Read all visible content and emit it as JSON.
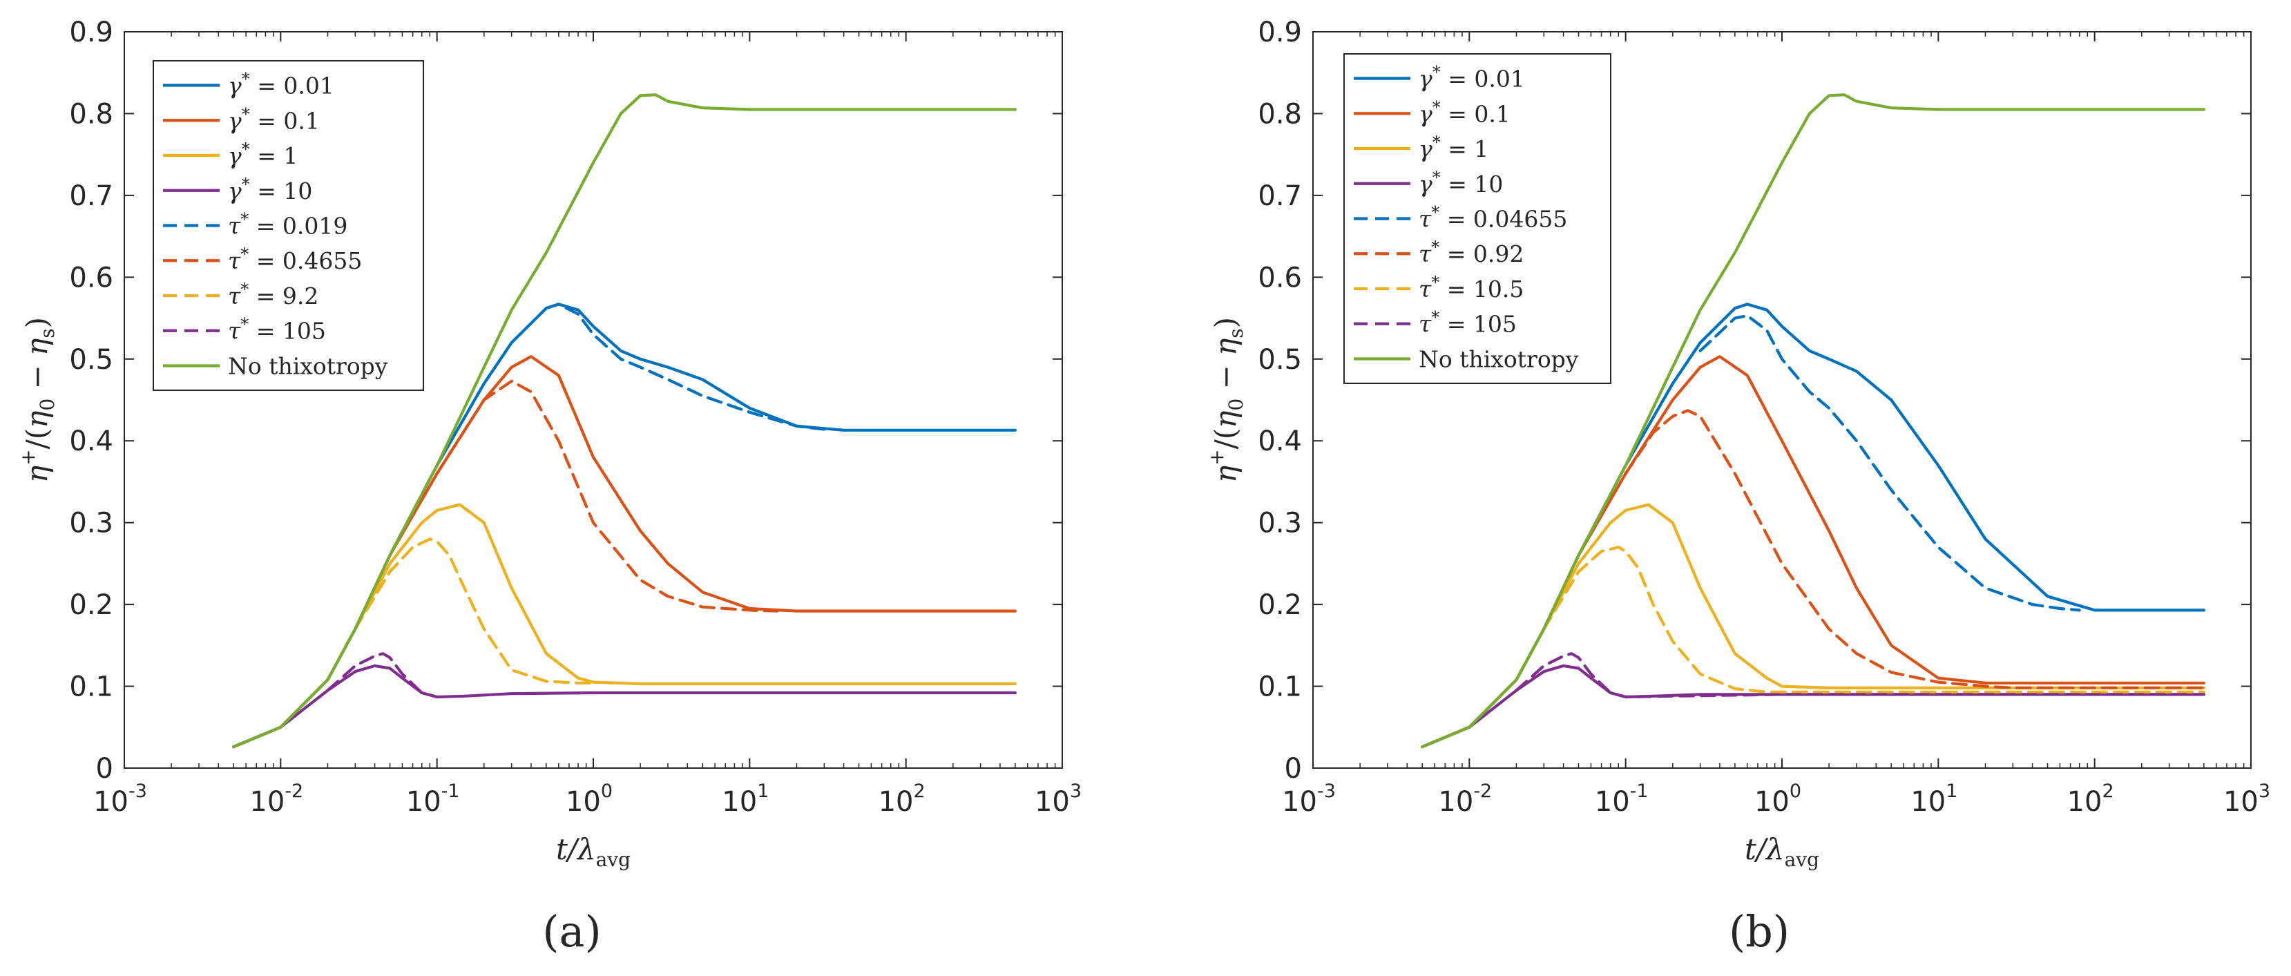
{
  "figure": {
    "panels": [
      "(a)",
      "(b)"
    ]
  },
  "chart_data": [
    {
      "type": "line",
      "panel": "(a)",
      "xscale": "log",
      "xlim": [
        0.001,
        1000
      ],
      "ylim": [
        0,
        0.9
      ],
      "xlabel": "t/λavg",
      "ylabel": "η+/(η0 − ηs)",
      "xticks": [
        {
          "base": "10",
          "exp": "-3"
        },
        {
          "base": "10",
          "exp": "-2"
        },
        {
          "base": "10",
          "exp": "-1"
        },
        {
          "base": "10",
          "exp": "0"
        },
        {
          "base": "10",
          "exp": "1"
        },
        {
          "base": "10",
          "exp": "2"
        },
        {
          "base": "10",
          "exp": "3"
        }
      ],
      "yticks": [
        "0",
        "0.1",
        "0.2",
        "0.3",
        "0.4",
        "0.5",
        "0.6",
        "0.7",
        "0.8",
        "0.9"
      ],
      "legend_position": "top-left",
      "series": [
        {
          "label": "γ* = 0.01",
          "color": "#0072BD",
          "dash": false,
          "x": [
            0.005,
            0.01,
            0.02,
            0.03,
            0.05,
            0.1,
            0.2,
            0.3,
            0.5,
            0.6,
            0.8,
            1,
            1.5,
            2,
            3,
            5,
            10,
            20,
            40,
            100,
            500
          ],
          "y": [
            0.026,
            0.05,
            0.108,
            0.17,
            0.26,
            0.37,
            0.47,
            0.52,
            0.562,
            0.567,
            0.56,
            0.54,
            0.51,
            0.5,
            0.49,
            0.475,
            0.44,
            0.418,
            0.413,
            0.413,
            0.413
          ]
        },
        {
          "label": "γ* = 0.1",
          "color": "#D95319",
          "dash": false,
          "x": [
            0.005,
            0.01,
            0.02,
            0.03,
            0.05,
            0.1,
            0.2,
            0.3,
            0.4,
            0.6,
            1,
            2,
            3,
            5,
            10,
            20,
            500
          ],
          "y": [
            0.026,
            0.05,
            0.108,
            0.17,
            0.26,
            0.36,
            0.45,
            0.49,
            0.503,
            0.48,
            0.38,
            0.29,
            0.25,
            0.215,
            0.195,
            0.192,
            0.192
          ]
        },
        {
          "label": "γ* = 1",
          "color": "#EDB120",
          "dash": false,
          "x": [
            0.005,
            0.01,
            0.02,
            0.03,
            0.05,
            0.08,
            0.1,
            0.14,
            0.2,
            0.3,
            0.5,
            0.8,
            1,
            2,
            500
          ],
          "y": [
            0.026,
            0.05,
            0.108,
            0.17,
            0.25,
            0.3,
            0.315,
            0.322,
            0.3,
            0.22,
            0.14,
            0.11,
            0.105,
            0.103,
            0.103
          ]
        },
        {
          "label": "γ* = 10",
          "color": "#7E2F8E",
          "dash": false,
          "x": [
            0.005,
            0.01,
            0.02,
            0.03,
            0.04,
            0.05,
            0.06,
            0.08,
            0.1,
            0.15,
            0.3,
            1,
            500
          ],
          "y": [
            0.026,
            0.05,
            0.095,
            0.118,
            0.125,
            0.122,
            0.11,
            0.092,
            0.087,
            0.088,
            0.091,
            0.092,
            0.092
          ]
        },
        {
          "label": "τ* = 0.019",
          "color": "#0072BD",
          "dash": true,
          "x": [
            0.5,
            0.6,
            0.8,
            1,
            1.5,
            2,
            3,
            5,
            10,
            20,
            30
          ],
          "y": [
            0.562,
            0.567,
            0.555,
            0.53,
            0.5,
            0.49,
            0.475,
            0.455,
            0.435,
            0.418,
            0.414
          ]
        },
        {
          "label": "τ* = 0.4655",
          "color": "#D95319",
          "dash": true,
          "x": [
            0.1,
            0.2,
            0.3,
            0.4,
            0.6,
            1,
            2,
            3,
            5,
            10,
            15
          ],
          "y": [
            0.36,
            0.45,
            0.473,
            0.46,
            0.4,
            0.3,
            0.23,
            0.21,
            0.197,
            0.193,
            0.192
          ]
        },
        {
          "label": "τ* = 9.2",
          "color": "#EDB120",
          "dash": true,
          "x": [
            0.03,
            0.05,
            0.07,
            0.09,
            0.1,
            0.12,
            0.15,
            0.2,
            0.3,
            0.5,
            0.8,
            1
          ],
          "y": [
            0.17,
            0.24,
            0.27,
            0.28,
            0.277,
            0.26,
            0.22,
            0.17,
            0.12,
            0.106,
            0.104,
            0.104
          ]
        },
        {
          "label": "τ* = 105",
          "color": "#7E2F8E",
          "dash": true,
          "x": [
            0.02,
            0.03,
            0.04,
            0.045,
            0.05,
            0.06,
            0.08,
            0.1
          ],
          "y": [
            0.095,
            0.125,
            0.137,
            0.14,
            0.135,
            0.115,
            0.092,
            0.087
          ]
        },
        {
          "label": "No thixotropy",
          "color": "#77AC30",
          "dash": false,
          "x": [
            0.005,
            0.01,
            0.02,
            0.03,
            0.05,
            0.1,
            0.2,
            0.3,
            0.5,
            1,
            1.5,
            2,
            2.5,
            3,
            5,
            10,
            500
          ],
          "y": [
            0.026,
            0.05,
            0.108,
            0.17,
            0.26,
            0.37,
            0.49,
            0.56,
            0.63,
            0.74,
            0.8,
            0.822,
            0.823,
            0.815,
            0.807,
            0.805,
            0.805
          ]
        }
      ]
    },
    {
      "type": "line",
      "panel": "(b)",
      "xscale": "log",
      "xlim": [
        0.001,
        1000
      ],
      "ylim": [
        0,
        0.9
      ],
      "xlabel": "t/λavg",
      "ylabel": "η+/(η0 − ηs)",
      "xticks": [
        {
          "base": "10",
          "exp": "-3"
        },
        {
          "base": "10",
          "exp": "-2"
        },
        {
          "base": "10",
          "exp": "-1"
        },
        {
          "base": "10",
          "exp": "0"
        },
        {
          "base": "10",
          "exp": "1"
        },
        {
          "base": "10",
          "exp": "2"
        },
        {
          "base": "10",
          "exp": "3"
        }
      ],
      "yticks": [
        "0",
        "0.1",
        "0.2",
        "0.3",
        "0.4",
        "0.5",
        "0.6",
        "0.7",
        "0.8",
        "0.9"
      ],
      "legend_position": "top-left",
      "series": [
        {
          "label": "γ* = 0.01",
          "color": "#0072BD",
          "dash": false,
          "x": [
            0.005,
            0.01,
            0.02,
            0.03,
            0.05,
            0.1,
            0.2,
            0.3,
            0.5,
            0.6,
            0.8,
            1,
            1.5,
            2,
            3,
            5,
            10,
            20,
            50,
            100,
            500
          ],
          "y": [
            0.026,
            0.05,
            0.108,
            0.17,
            0.26,
            0.37,
            0.47,
            0.52,
            0.562,
            0.567,
            0.56,
            0.54,
            0.51,
            0.5,
            0.485,
            0.45,
            0.37,
            0.28,
            0.21,
            0.193,
            0.193
          ]
        },
        {
          "label": "γ* = 0.1",
          "color": "#D95319",
          "dash": false,
          "x": [
            0.005,
            0.01,
            0.02,
            0.03,
            0.05,
            0.1,
            0.2,
            0.3,
            0.4,
            0.6,
            1,
            2,
            3,
            5,
            10,
            20,
            500
          ],
          "y": [
            0.026,
            0.05,
            0.108,
            0.17,
            0.26,
            0.36,
            0.45,
            0.49,
            0.503,
            0.48,
            0.4,
            0.29,
            0.22,
            0.15,
            0.11,
            0.104,
            0.104
          ]
        },
        {
          "label": "γ* = 1",
          "color": "#EDB120",
          "dash": false,
          "x": [
            0.005,
            0.01,
            0.02,
            0.03,
            0.05,
            0.08,
            0.1,
            0.14,
            0.2,
            0.3,
            0.5,
            0.8,
            1,
            2,
            500
          ],
          "y": [
            0.026,
            0.05,
            0.108,
            0.17,
            0.25,
            0.3,
            0.315,
            0.322,
            0.3,
            0.22,
            0.14,
            0.11,
            0.1,
            0.098,
            0.098
          ]
        },
        {
          "label": "γ* = 10",
          "color": "#7E2F8E",
          "dash": false,
          "x": [
            0.005,
            0.01,
            0.02,
            0.03,
            0.04,
            0.05,
            0.06,
            0.08,
            0.1,
            0.15,
            0.3,
            1,
            500
          ],
          "y": [
            0.026,
            0.05,
            0.095,
            0.118,
            0.125,
            0.122,
            0.11,
            0.092,
            0.087,
            0.088,
            0.09,
            0.09,
            0.09
          ]
        },
        {
          "label": "τ* = 0.04655",
          "color": "#0072BD",
          "dash": true,
          "x": [
            0.3,
            0.5,
            0.6,
            0.8,
            1,
            1.5,
            2,
            3,
            5,
            10,
            20,
            40,
            60,
            80
          ],
          "y": [
            0.51,
            0.55,
            0.553,
            0.535,
            0.5,
            0.46,
            0.44,
            0.4,
            0.34,
            0.27,
            0.22,
            0.2,
            0.195,
            0.193
          ]
        },
        {
          "label": "τ* = 0.92",
          "color": "#D95319",
          "dash": true,
          "x": [
            0.1,
            0.15,
            0.2,
            0.25,
            0.3,
            0.5,
            1,
            2,
            3,
            5,
            10,
            20,
            30,
            500
          ],
          "y": [
            0.36,
            0.41,
            0.43,
            0.437,
            0.43,
            0.36,
            0.25,
            0.17,
            0.14,
            0.117,
            0.105,
            0.1,
            0.098,
            0.098
          ]
        },
        {
          "label": "τ* = 10.5",
          "color": "#EDB120",
          "dash": true,
          "x": [
            0.03,
            0.05,
            0.07,
            0.09,
            0.1,
            0.12,
            0.15,
            0.2,
            0.3,
            0.5,
            0.8,
            1,
            2,
            500
          ],
          "y": [
            0.17,
            0.24,
            0.265,
            0.27,
            0.265,
            0.245,
            0.2,
            0.155,
            0.115,
            0.097,
            0.093,
            0.093,
            0.093,
            0.093
          ]
        },
        {
          "label": "τ* = 105",
          "color": "#7E2F8E",
          "dash": true,
          "x": [
            0.02,
            0.03,
            0.04,
            0.045,
            0.05,
            0.06,
            0.08,
            0.1,
            0.2,
            1,
            500
          ],
          "y": [
            0.095,
            0.125,
            0.137,
            0.14,
            0.135,
            0.115,
            0.092,
            0.087,
            0.088,
            0.09,
            0.09
          ]
        },
        {
          "label": "No thixotropy",
          "color": "#77AC30",
          "dash": false,
          "x": [
            0.005,
            0.01,
            0.02,
            0.03,
            0.05,
            0.1,
            0.2,
            0.3,
            0.5,
            1,
            1.5,
            2,
            2.5,
            3,
            5,
            10,
            500
          ],
          "y": [
            0.026,
            0.05,
            0.108,
            0.17,
            0.26,
            0.37,
            0.49,
            0.56,
            0.63,
            0.74,
            0.8,
            0.822,
            0.823,
            0.815,
            0.807,
            0.805,
            0.805
          ]
        }
      ]
    }
  ]
}
